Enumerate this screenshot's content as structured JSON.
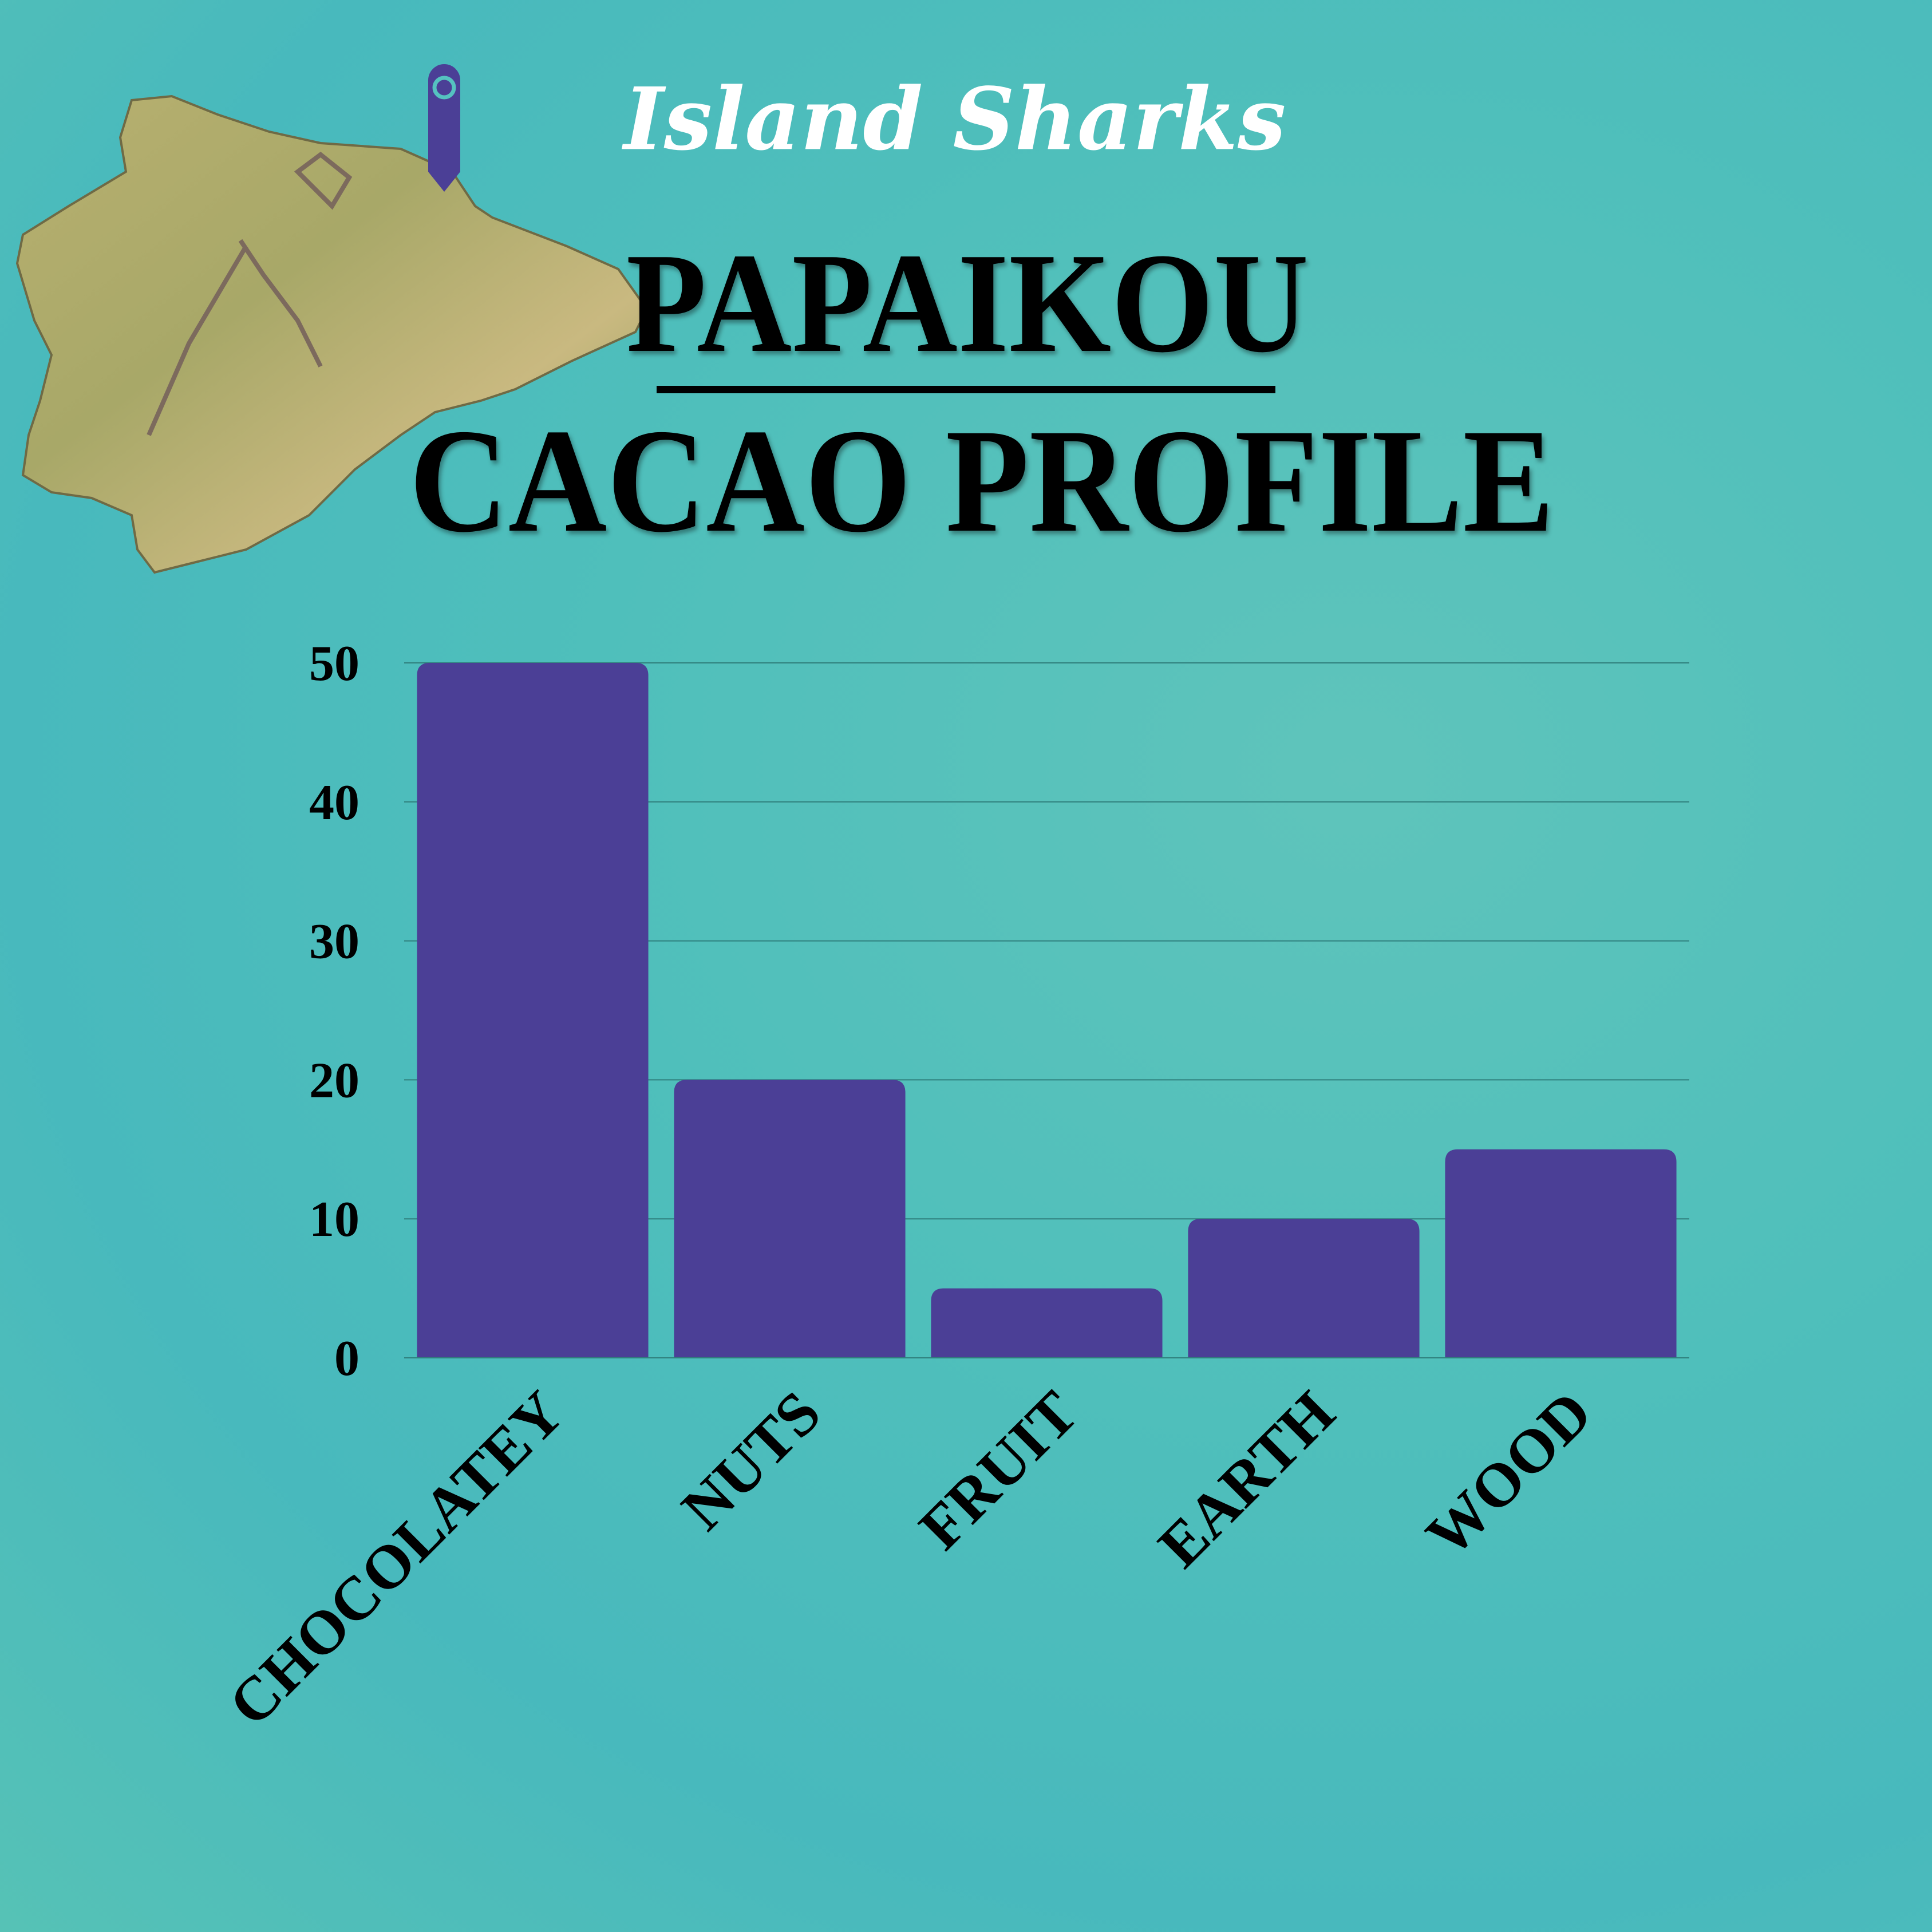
{
  "brand": "Island Sharks",
  "title_line1": "PAPAIKOU",
  "title_line2": "CACAO PROFILE",
  "icons": {
    "map": "big-island-hawaii-map",
    "pin": "location-pin-icon"
  },
  "colors": {
    "bar": "#4b3f96",
    "background": "#4fbfbb",
    "text": "#000000"
  },
  "chart_data": {
    "type": "bar",
    "categories": [
      "CHOCOLATEY",
      "NUTS",
      "FRUIT",
      "EARTH",
      "WOOD"
    ],
    "values": [
      50,
      20,
      5,
      10,
      15
    ],
    "ylim": [
      0,
      50
    ],
    "yticks": [
      0,
      10,
      20,
      30,
      40,
      50
    ],
    "grid": true,
    "xlabel": "",
    "ylabel": "",
    "legend": "none"
  }
}
